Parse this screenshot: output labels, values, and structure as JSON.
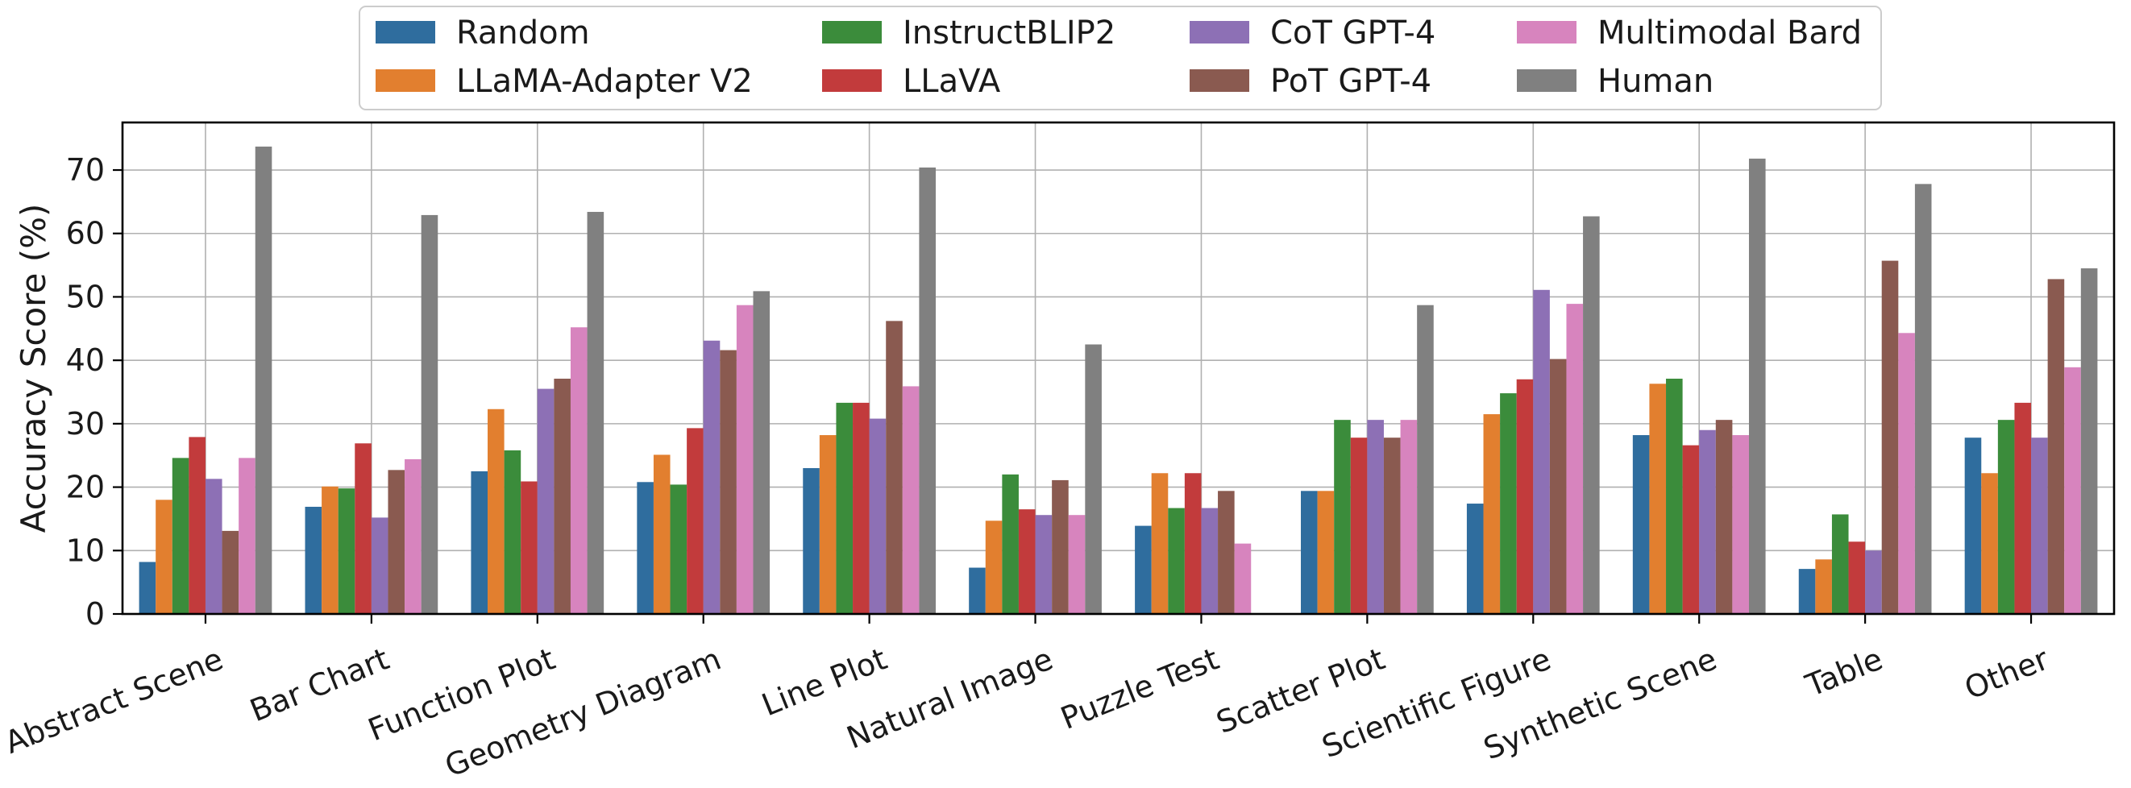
{
  "chart_data": {
    "type": "bar",
    "xlabel": "",
    "ylabel": "Accuracy Score (%)",
    "ylim": [
      0,
      77.5
    ],
    "yticks": [
      0,
      10,
      20,
      30,
      40,
      50,
      60,
      70
    ],
    "grid": true,
    "legend_position": "top-center",
    "categories": [
      "Abstract Scene",
      "Bar Chart",
      "Function Plot",
      "Geometry Diagram",
      "Line Plot",
      "Natural Image",
      "Puzzle Test",
      "Scatter Plot",
      "Scientific Figure",
      "Synthetic Scene",
      "Table",
      "Other"
    ],
    "series": [
      {
        "name": "Random",
        "color": "#2f6d9e",
        "values": [
          8.2,
          16.9,
          22.5,
          20.8,
          23.0,
          7.3,
          13.9,
          19.4,
          17.4,
          28.2,
          7.1,
          27.8
        ]
      },
      {
        "name": "LLaMA-Adapter V2",
        "color": "#e27f2f",
        "values": [
          18.0,
          20.1,
          32.3,
          25.1,
          28.2,
          14.7,
          22.2,
          19.4,
          31.5,
          36.3,
          8.6,
          22.2
        ]
      },
      {
        "name": "InstructBLIP2",
        "color": "#3b8c3b",
        "values": [
          24.6,
          19.8,
          25.8,
          20.4,
          33.3,
          22.0,
          16.7,
          30.6,
          34.8,
          37.1,
          15.7,
          30.6
        ]
      },
      {
        "name": "LLaVA",
        "color": "#c23b3c",
        "values": [
          27.9,
          26.9,
          20.9,
          29.3,
          33.3,
          16.5,
          22.2,
          27.8,
          37.0,
          26.6,
          11.4,
          33.3
        ]
      },
      {
        "name": "CoT GPT-4",
        "color": "#8d70b5",
        "values": [
          21.3,
          15.2,
          35.5,
          43.1,
          30.8,
          15.6,
          16.7,
          30.6,
          51.1,
          29.0,
          10.0,
          27.8
        ]
      },
      {
        "name": "PoT GPT-4",
        "color": "#8a5a50",
        "values": [
          13.1,
          22.7,
          37.1,
          41.6,
          46.2,
          21.1,
          19.4,
          27.8,
          40.2,
          30.6,
          55.7,
          52.8
        ]
      },
      {
        "name": "Multimodal Bard",
        "color": "#d784be",
        "values": [
          24.6,
          24.4,
          45.2,
          48.7,
          35.9,
          15.6,
          11.1,
          30.6,
          48.9,
          28.2,
          44.3,
          38.9
        ]
      },
      {
        "name": "Human",
        "color": "#808080",
        "values": [
          73.7,
          62.9,
          63.4,
          50.9,
          70.4,
          42.5,
          0,
          48.7,
          62.7,
          71.8,
          67.8,
          54.5
        ]
      }
    ]
  }
}
